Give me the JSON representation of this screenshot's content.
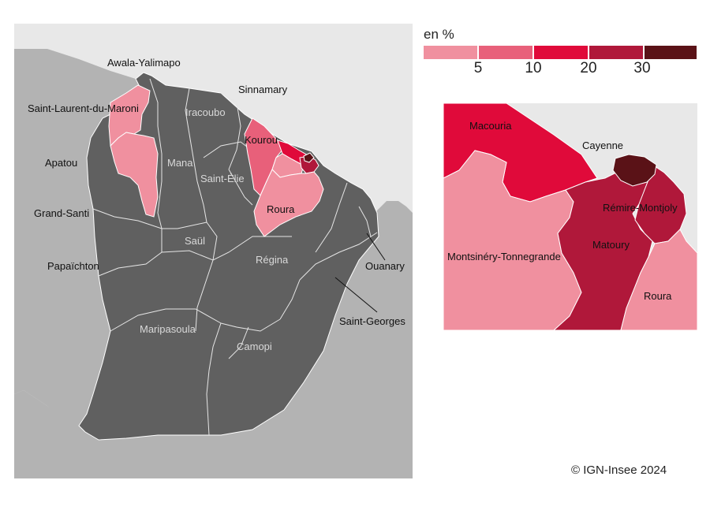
{
  "legend": {
    "title": "en %",
    "colors": [
      "#f0909f",
      "#e8607a",
      "#e00a3a",
      "#b0183a",
      "#5a1217"
    ],
    "ticks": [
      "5",
      "10",
      "20",
      "30"
    ]
  },
  "colors": {
    "sea": "#e8e8e8",
    "neighbor": "#b3b3b3",
    "no_data": "#606060",
    "border": "#ffffff"
  },
  "main_map": {
    "labels": {
      "awala": "Awala-Yalimapo",
      "sinnamary": "Sinnamary",
      "saint_laurent": "Saint-Laurent-du-Maroni",
      "iracoubo": "Iracoubo",
      "kourou": "Kourou",
      "apatou": "Apatou",
      "mana": "Mana",
      "saint_elie": "Saint-Élie",
      "grand_santi": "Grand-Santi",
      "roura": "Roura",
      "saul": "Saül",
      "regina": "Régina",
      "papaichton": "Papaïchton",
      "ouanary": "Ouanary",
      "saint_georges": "Saint-Georges",
      "maripasoula": "Maripasoula",
      "camopi": "Camopi"
    }
  },
  "inset_map": {
    "labels": {
      "macouria": "Macouria",
      "cayenne": "Cayenne",
      "remire": "Rémire-Montjoly",
      "matoury": "Matoury",
      "montsinery": "Montsinéry-Tonnegrande",
      "roura": "Roura"
    }
  },
  "copyright": "© IGN-Insee 2024"
}
